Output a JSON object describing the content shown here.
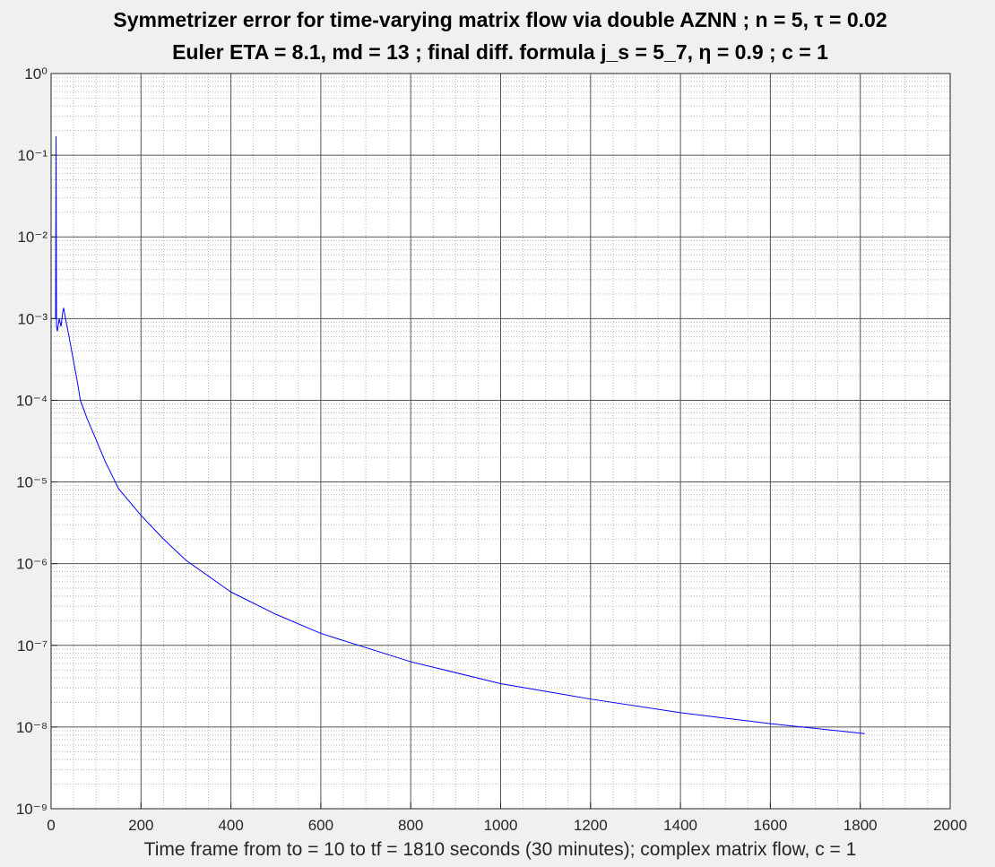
{
  "chart_data": {
    "type": "line",
    "title": [
      "Symmetrizer error for time-varying matrix flow via double AZNN ;  n = 5, τ = 0.02",
      "Euler ETA = 8.1,  md = 13 ;  final diff. formula  j_s = 5_7,  η = 0.9 ;  c = 1"
    ],
    "xlabel": "Time frame from to = 10 to tf = 1810 seconds (30 minutes);  complex matrix flow, c = 1",
    "x": [
      10,
      11,
      12,
      14,
      18,
      22,
      26,
      28,
      32,
      40,
      50,
      60,
      65,
      80,
      100,
      120,
      150,
      200,
      250,
      300,
      400,
      500,
      600,
      800,
      1000,
      1200,
      1400,
      1600,
      1810
    ],
    "series": [
      {
        "name": "symmetrizer error",
        "color": "#0000ff",
        "values": [
          0.001,
          0.17,
          0.0008,
          0.0007,
          0.001,
          0.0008,
          0.0012,
          0.00135,
          0.001,
          0.0006,
          0.0003,
          0.00015,
          0.0001,
          6e-05,
          3.3e-05,
          1.8e-05,
          8.3e-06,
          3.9e-06,
          2e-06,
          1.1e-06,
          4.5e-07,
          2.4e-07,
          1.4e-07,
          6.3e-08,
          3.4e-08,
          2.2e-08,
          1.5e-08,
          1.1e-08,
          8.3e-09
        ]
      }
    ],
    "xlim": [
      0,
      2000
    ],
    "xticks": [
      0,
      200,
      400,
      600,
      800,
      1000,
      1200,
      1400,
      1600,
      1800,
      2000
    ],
    "ylim": [
      1e-09,
      1
    ],
    "ylog": true,
    "yticks": [
      {
        "value": 1e-09,
        "label": "10⁻⁹"
      },
      {
        "value": 1e-08,
        "label": "10⁻⁸"
      },
      {
        "value": 1e-07,
        "label": "10⁻⁷"
      },
      {
        "value": 1e-06,
        "label": "10⁻⁶"
      },
      {
        "value": 1e-05,
        "label": "10⁻⁵"
      },
      {
        "value": 0.0001,
        "label": "10⁻⁴"
      },
      {
        "value": 0.001,
        "label": "10⁻³"
      },
      {
        "value": 0.01,
        "label": "10⁻²"
      },
      {
        "value": 0.1,
        "label": "10⁻¹"
      },
      {
        "value": 1,
        "label": "10⁰"
      }
    ],
    "grid": true,
    "minor_grid": true
  }
}
